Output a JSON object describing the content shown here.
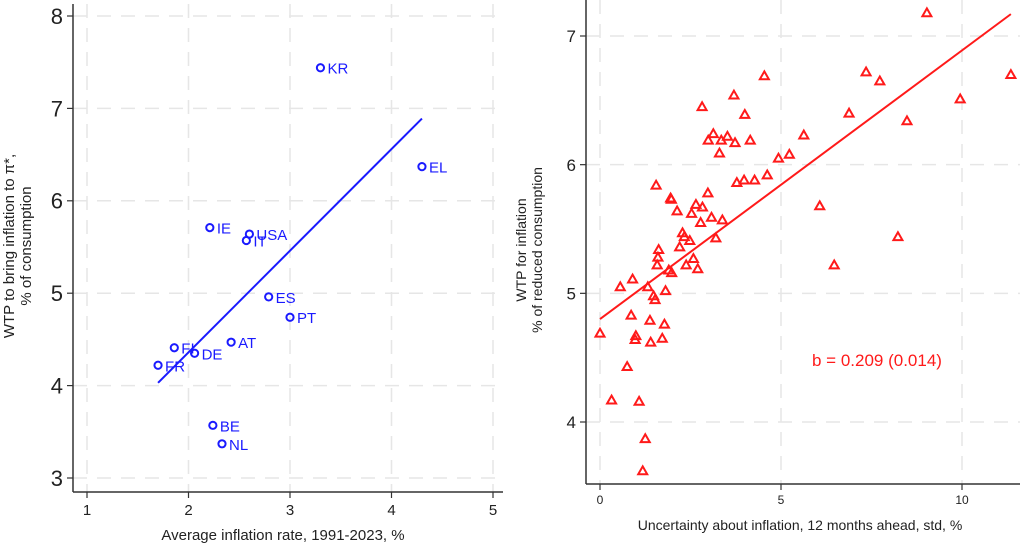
{
  "chart_data": [
    {
      "type": "scatter",
      "panel": "left",
      "xlabel": "Average inflation rate, 1991-2023, %",
      "ylabel_line1": "WTP to bring inflation to π*,",
      "ylabel_line2": "% of consumption",
      "xlim": [
        0.95,
        5.05
      ],
      "ylim": [
        2.85,
        8.15
      ],
      "xticks": [
        "1",
        "2",
        "3",
        "4",
        "5"
      ],
      "yticks": [
        "3",
        "4",
        "5",
        "6",
        "7",
        "8"
      ],
      "grid": true,
      "color": "#1a1aff",
      "marker": "circle",
      "points": [
        {
          "label": "KR",
          "x": 3.3,
          "y": 7.44
        },
        {
          "label": "EL",
          "x": 4.3,
          "y": 6.37
        },
        {
          "label": "IE",
          "x": 2.21,
          "y": 5.71
        },
        {
          "label": "USA",
          "x": 2.6,
          "y": 5.64
        },
        {
          "label": "IT",
          "x": 2.57,
          "y": 5.57
        },
        {
          "label": "ES",
          "x": 2.79,
          "y": 4.96
        },
        {
          "label": "PT",
          "x": 3.0,
          "y": 4.74
        },
        {
          "label": "AT",
          "x": 2.42,
          "y": 4.47
        },
        {
          "label": "FI",
          "x": 1.86,
          "y": 4.41
        },
        {
          "label": "DE",
          "x": 2.06,
          "y": 4.35
        },
        {
          "label": "FR",
          "x": 1.7,
          "y": 4.22
        },
        {
          "label": "BE",
          "x": 2.24,
          "y": 3.57
        },
        {
          "label": "NL",
          "x": 2.33,
          "y": 3.37
        }
      ],
      "fit_line": {
        "x": [
          1.7,
          4.3
        ],
        "y": [
          4.03,
          6.89
        ]
      }
    },
    {
      "type": "scatter",
      "panel": "right",
      "xlabel": "Uncertainty about inflation, 12 months ahead, std, %",
      "ylabel_line1": "WTP for inflation",
      "ylabel_line2": "% of reduced consumption",
      "xlim": [
        -0.4,
        11.4
      ],
      "ylim": [
        3.45,
        7.28
      ],
      "xticks": [
        "0",
        "5",
        "10"
      ],
      "yticks": [
        "4",
        "5",
        "6",
        "7"
      ],
      "grid": true,
      "color": "#ff1a1a",
      "marker": "triangle",
      "annotation": "b = 0.209 (0.014)",
      "points": [
        {
          "x": 0.0,
          "y": 4.69
        },
        {
          "x": 0.32,
          "y": 4.17
        },
        {
          "x": 0.56,
          "y": 5.05
        },
        {
          "x": 0.75,
          "y": 4.43
        },
        {
          "x": 0.86,
          "y": 4.83
        },
        {
          "x": 0.9,
          "y": 5.11
        },
        {
          "x": 0.97,
          "y": 4.64
        },
        {
          "x": 0.99,
          "y": 4.67
        },
        {
          "x": 1.08,
          "y": 4.16
        },
        {
          "x": 1.18,
          "y": 3.62
        },
        {
          "x": 1.25,
          "y": 3.87
        },
        {
          "x": 1.32,
          "y": 5.05
        },
        {
          "x": 1.38,
          "y": 4.79
        },
        {
          "x": 1.4,
          "y": 4.62
        },
        {
          "x": 1.48,
          "y": 4.98
        },
        {
          "x": 1.52,
          "y": 4.95
        },
        {
          "x": 1.72,
          "y": 4.65
        },
        {
          "x": 1.78,
          "y": 4.76
        },
        {
          "x": 1.81,
          "y": 5.02
        },
        {
          "x": 1.9,
          "y": 5.18
        },
        {
          "x": 1.98,
          "y": 5.16
        },
        {
          "x": 1.6,
          "y": 5.28
        },
        {
          "x": 1.58,
          "y": 5.22
        },
        {
          "x": 1.62,
          "y": 5.34
        },
        {
          "x": 1.55,
          "y": 5.84
        },
        {
          "x": 1.95,
          "y": 5.74
        },
        {
          "x": 1.97,
          "y": 5.73
        },
        {
          "x": 2.13,
          "y": 5.64
        },
        {
          "x": 2.28,
          "y": 5.47
        },
        {
          "x": 2.33,
          "y": 5.44
        },
        {
          "x": 2.2,
          "y": 5.36
        },
        {
          "x": 2.48,
          "y": 5.41
        },
        {
          "x": 2.58,
          "y": 5.27
        },
        {
          "x": 2.38,
          "y": 5.22
        },
        {
          "x": 2.7,
          "y": 5.19
        },
        {
          "x": 2.53,
          "y": 5.62
        },
        {
          "x": 2.65,
          "y": 5.69
        },
        {
          "x": 2.83,
          "y": 5.67
        },
        {
          "x": 2.78,
          "y": 5.55
        },
        {
          "x": 2.98,
          "y": 5.78
        },
        {
          "x": 3.08,
          "y": 5.59
        },
        {
          "x": 3.38,
          "y": 5.57
        },
        {
          "x": 3.2,
          "y": 5.43
        },
        {
          "x": 2.82,
          "y": 6.45
        },
        {
          "x": 2.99,
          "y": 6.19
        },
        {
          "x": 3.13,
          "y": 6.24
        },
        {
          "x": 3.35,
          "y": 6.19
        },
        {
          "x": 3.3,
          "y": 6.09
        },
        {
          "x": 3.7,
          "y": 6.54
        },
        {
          "x": 3.52,
          "y": 6.22
        },
        {
          "x": 3.73,
          "y": 6.17
        },
        {
          "x": 4.0,
          "y": 6.39
        },
        {
          "x": 4.15,
          "y": 6.19
        },
        {
          "x": 4.27,
          "y": 5.88
        },
        {
          "x": 3.78,
          "y": 5.86
        },
        {
          "x": 3.98,
          "y": 5.88
        },
        {
          "x": 4.62,
          "y": 5.92
        },
        {
          "x": 4.93,
          "y": 6.05
        },
        {
          "x": 4.54,
          "y": 6.69
        },
        {
          "x": 5.23,
          "y": 6.08
        },
        {
          "x": 5.63,
          "y": 6.23
        },
        {
          "x": 6.07,
          "y": 5.68
        },
        {
          "x": 6.47,
          "y": 5.22
        },
        {
          "x": 6.88,
          "y": 6.4
        },
        {
          "x": 7.35,
          "y": 6.72
        },
        {
          "x": 7.73,
          "y": 6.65
        },
        {
          "x": 8.23,
          "y": 5.44
        },
        {
          "x": 8.48,
          "y": 6.34
        },
        {
          "x": 9.03,
          "y": 7.18
        },
        {
          "x": 9.95,
          "y": 6.51
        },
        {
          "x": 11.35,
          "y": 6.7
        }
      ],
      "fit_line": {
        "x": [
          0.0,
          11.35
        ],
        "y": [
          4.8,
          7.17
        ]
      }
    }
  ]
}
